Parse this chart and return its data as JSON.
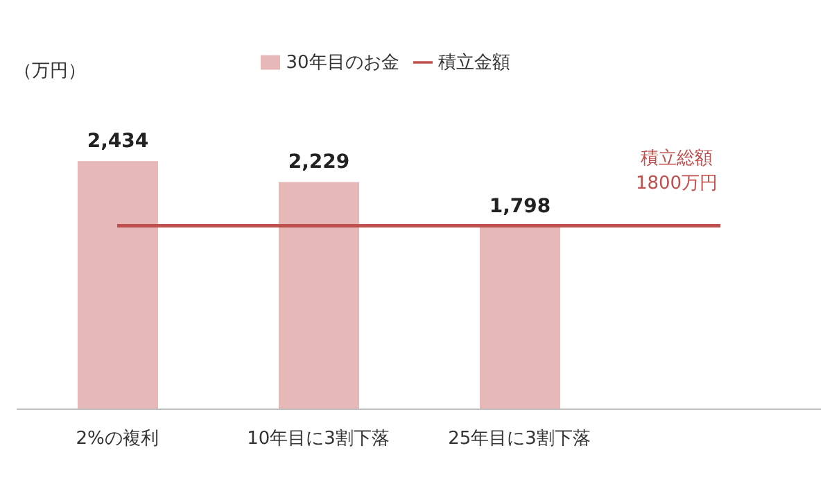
{
  "chart_data": {
    "type": "bar",
    "ylabel": "（万円）",
    "categories": [
      "2%の複利",
      "10年目に3割下落",
      "25年目に3割下落",
      null
    ],
    "series": [
      {
        "name": "30年目のお金",
        "color": "#e6b9b8",
        "values": [
          2434,
          2229,
          1798,
          null
        ],
        "value_labels": [
          "2,434",
          "2,229",
          "1,798",
          null
        ]
      },
      {
        "name": "積立金額",
        "type": "line",
        "color": "#c0504d",
        "values": [
          1800,
          1800,
          1800,
          1800
        ]
      }
    ],
    "annotations": [
      "積立総額\n1800万円"
    ],
    "tick_labels": "x",
    "legend": "top",
    "marker": "none",
    "line_style": "solid"
  }
}
